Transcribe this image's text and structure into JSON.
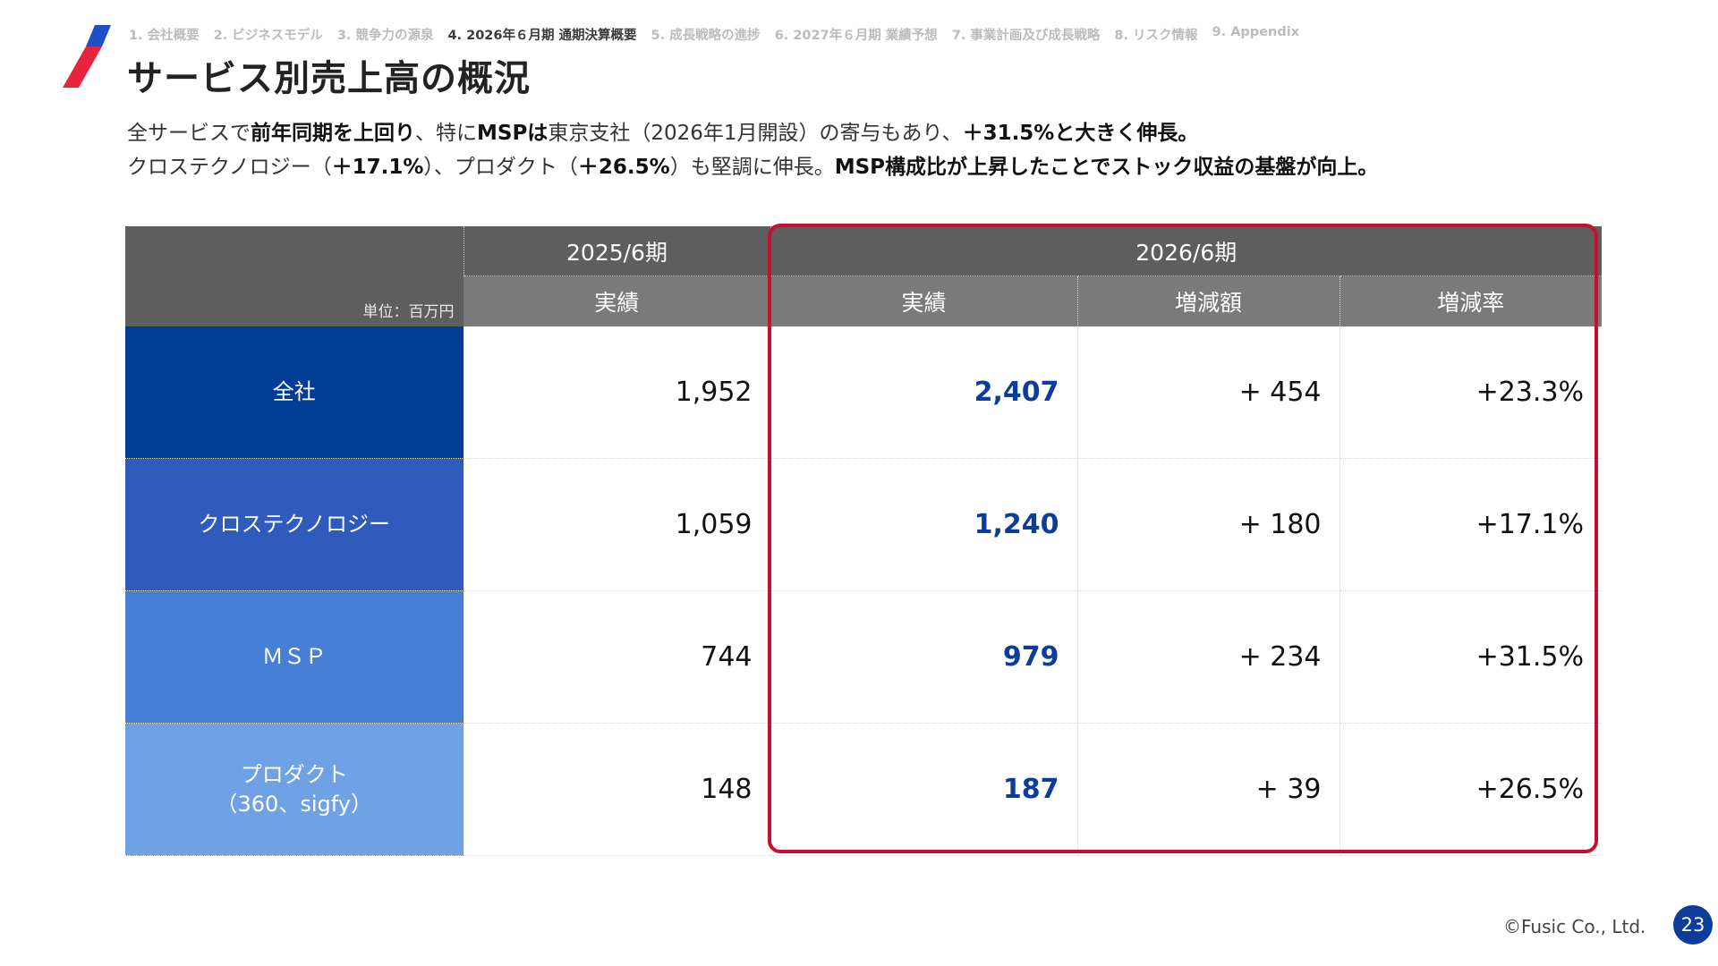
{
  "nav": [
    "1. 会社概要",
    "2. ビジネスモデル",
    "3. 競争力の源泉",
    "4. 2026年６月期 通期決算概要",
    "5. 成長戦略の進捗",
    "6. 2027年６月期 業績予想",
    "7. 事業計画及び成長戦略",
    "8. リスク情報",
    "9. Appendix"
  ],
  "title": "サービス別売上高の概況",
  "summary": {
    "l1a": "全サービスで",
    "l1b": "前年同期を上回り",
    "l1c": "、特に",
    "l1d": "MSPは",
    "l1e": "東京支社（2026年1月開設）の寄与もあり、",
    "l1f": "＋31.5%と大きく伸長。",
    "l2a": "クロステクノロジー（",
    "l2b": "＋17.1%",
    "l2c": "）、プロダクト（",
    "l2d": "＋26.5%",
    "l2e": "）も堅調に伸長。",
    "l2f": "MSP構成比が上昇したことでストック収益の基盤が向上。"
  },
  "table": {
    "unit": "単位：百万円",
    "period_prev": "2025/6期",
    "period_curr": "2026/6期",
    "col_actual_prev": "実績",
    "col_actual_curr": "実績",
    "col_change_amount": "増減額",
    "col_change_rate": "増減率",
    "rows": [
      {
        "label": "全社",
        "prev": "1,952",
        "curr": "2,407",
        "diff": "+ 454",
        "rate": "+23.3%"
      },
      {
        "label": "クロステクノロジー",
        "prev": "1,059",
        "curr": "1,240",
        "diff": "+ 180",
        "rate": "+17.1%"
      },
      {
        "label": "ＭＳＰ",
        "prev": "744",
        "curr": "979",
        "diff": "+ 234",
        "rate": "+31.5%"
      },
      {
        "label": "プロダクト",
        "label2": "（360、sigfy）",
        "prev": "148",
        "curr": "187",
        "diff": "+ 39",
        "rate": "+26.5%"
      }
    ]
  },
  "footer": {
    "copyright": "©Fusic Co., Ltd.",
    "page": "23"
  },
  "colors": {
    "accent_red": "#c8102e",
    "accent_blue": "#0d3d9a",
    "row_colors": [
      "#003d96",
      "#2f5bbd",
      "#467fd3",
      "#6ea2e4"
    ]
  }
}
